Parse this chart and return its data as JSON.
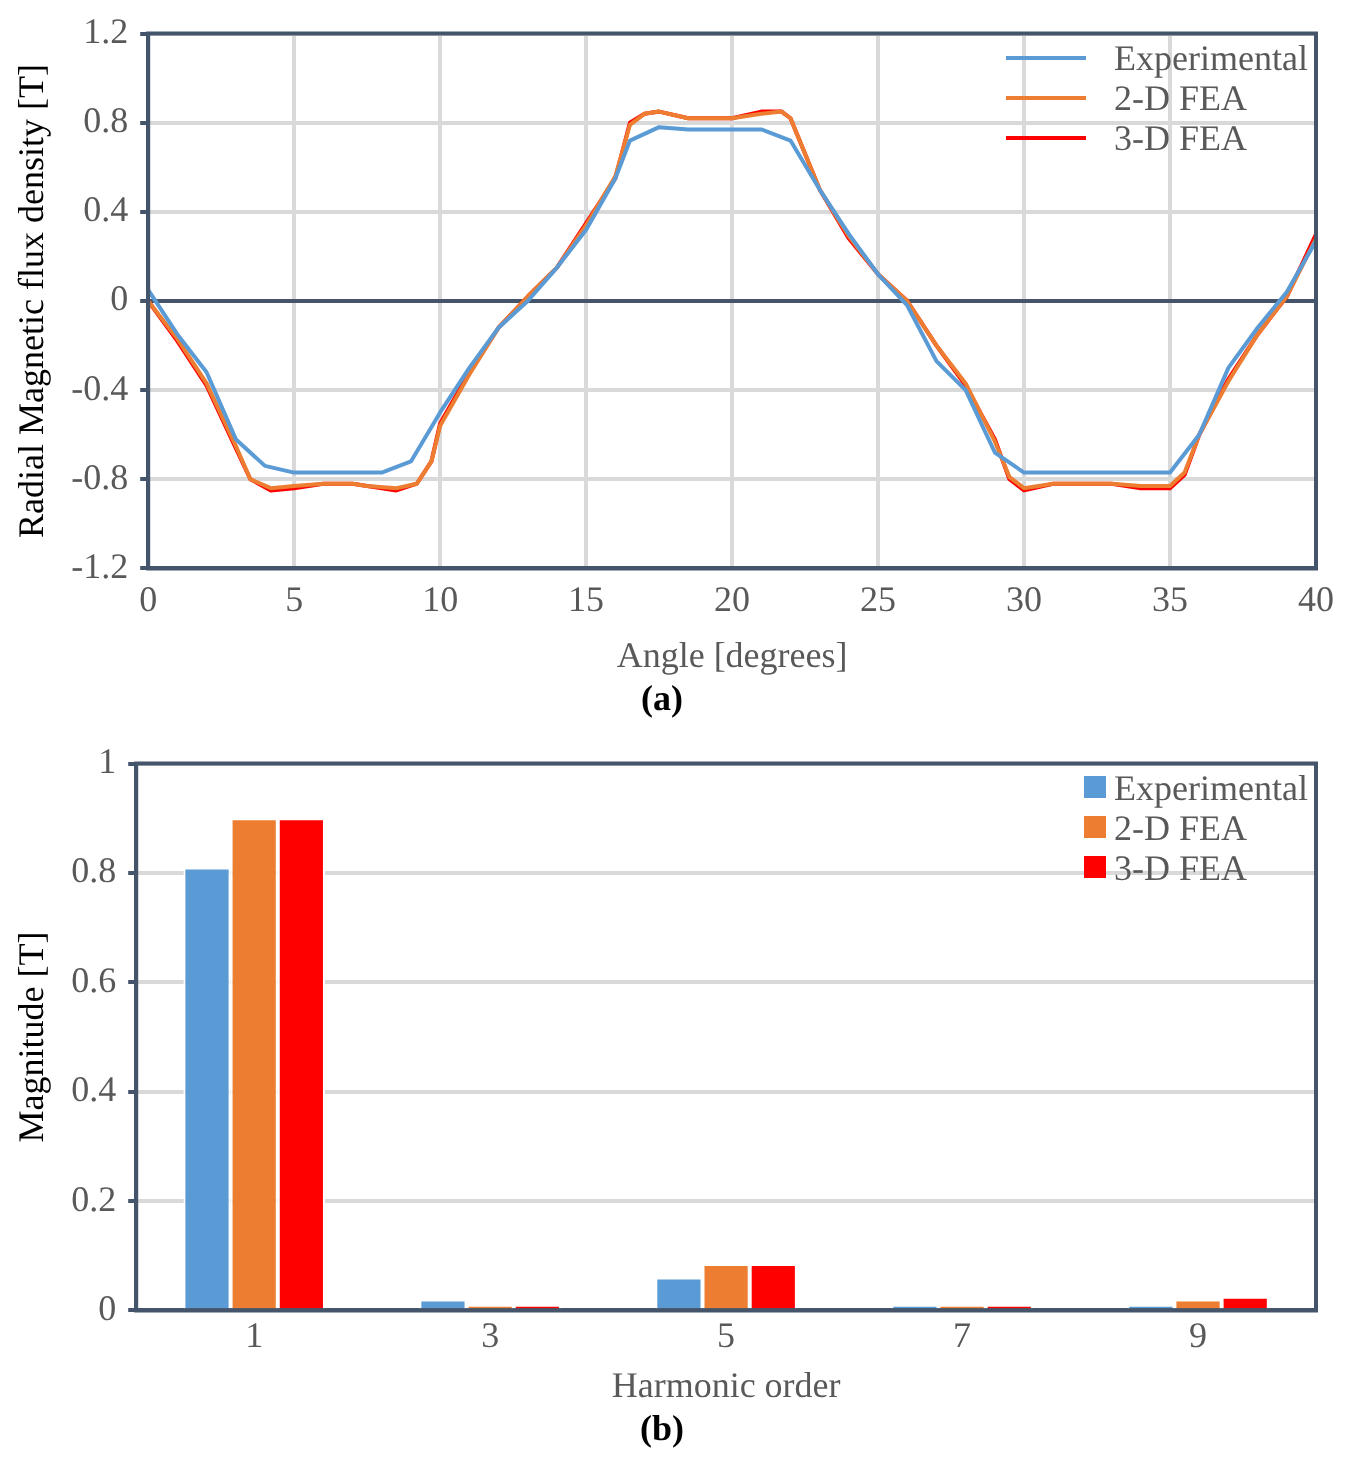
{
  "chart_data": [
    {
      "type": "line",
      "title": "(a)",
      "xlabel": "Angle [degrees]",
      "ylabel": "Radial Magnetic flux density [T]",
      "xlim": [
        0,
        40
      ],
      "xticks": [
        0,
        5,
        10,
        15,
        20,
        25,
        30,
        35,
        40
      ],
      "ylim": [
        -1.2,
        1.2
      ],
      "yticks": [
        -1.2,
        -0.8,
        -0.4,
        0,
        0.4,
        0.8,
        1.2
      ],
      "grid": true,
      "legend": "top right",
      "marker": "none",
      "line_style": "solid",
      "series": [
        {
          "name": "Experimental",
          "color": "#5b9bd5",
          "x": [
            0,
            1,
            2,
            3,
            4,
            5,
            8,
            9,
            10,
            11,
            12,
            13,
            14,
            15,
            16,
            16.5,
            17.5,
            18.5,
            21,
            22,
            23,
            24,
            25,
            26,
            27,
            28,
            29,
            30,
            35,
            36,
            37,
            38,
            39,
            40
          ],
          "values": [
            0.05,
            -0.15,
            -0.32,
            -0.62,
            -0.74,
            -0.77,
            -0.77,
            -0.72,
            -0.5,
            -0.3,
            -0.12,
            0.0,
            0.15,
            0.32,
            0.55,
            0.72,
            0.78,
            0.77,
            0.77,
            0.72,
            0.5,
            0.3,
            0.12,
            -0.02,
            -0.27,
            -0.4,
            -0.68,
            -0.77,
            -0.77,
            -0.6,
            -0.3,
            -0.12,
            0.04,
            0.27
          ]
        },
        {
          "name": "2-D FEA",
          "color": "#ed7d31",
          "x": [
            0,
            1,
            2,
            3,
            3.5,
            4.2,
            5,
            6,
            7,
            7.5,
            8.5,
            9.2,
            9.7,
            10,
            11,
            12,
            13,
            14,
            15,
            16,
            16.5,
            17,
            17.5,
            18.5,
            20,
            21,
            21.7,
            22,
            23,
            24,
            25,
            26,
            27,
            28,
            29,
            29.5,
            30,
            31,
            33,
            34,
            35,
            35.5,
            36,
            37,
            38,
            39,
            40
          ],
          "values": [
            0,
            -0.17,
            -0.37,
            -0.65,
            -0.8,
            -0.84,
            -0.83,
            -0.82,
            -0.82,
            -0.83,
            -0.84,
            -0.82,
            -0.72,
            -0.56,
            -0.33,
            -0.12,
            0.02,
            0.15,
            0.34,
            0.56,
            0.79,
            0.84,
            0.85,
            0.82,
            0.82,
            0.84,
            0.85,
            0.82,
            0.5,
            0.29,
            0.12,
            0,
            -0.2,
            -0.37,
            -0.63,
            -0.79,
            -0.84,
            -0.82,
            -0.82,
            -0.83,
            -0.83,
            -0.77,
            -0.6,
            -0.36,
            -0.15,
            0.02,
            0.28
          ]
        },
        {
          "name": "3-D FEA",
          "color": "#ff0000",
          "x": [
            0,
            1,
            2,
            3,
            3.5,
            4.2,
            5,
            6,
            7,
            7.5,
            8.5,
            9.2,
            9.7,
            10,
            11,
            12,
            13,
            14,
            15,
            16,
            16.5,
            17,
            17.5,
            18.5,
            20,
            21,
            21.7,
            22,
            23,
            24,
            25,
            26,
            27,
            28,
            29,
            29.5,
            30,
            31,
            33,
            34,
            35,
            35.5,
            36,
            37,
            38,
            39,
            40
          ],
          "values": [
            0,
            -0.18,
            -0.38,
            -0.66,
            -0.8,
            -0.85,
            -0.84,
            -0.82,
            -0.82,
            -0.83,
            -0.85,
            -0.82,
            -0.72,
            -0.55,
            -0.32,
            -0.12,
            0.02,
            0.15,
            0.35,
            0.55,
            0.8,
            0.84,
            0.85,
            0.82,
            0.82,
            0.85,
            0.85,
            0.82,
            0.5,
            0.28,
            0.12,
            0,
            -0.2,
            -0.38,
            -0.62,
            -0.8,
            -0.85,
            -0.82,
            -0.82,
            -0.84,
            -0.84,
            -0.78,
            -0.6,
            -0.35,
            -0.15,
            0.02,
            0.3
          ]
        }
      ]
    },
    {
      "type": "bar",
      "title": "(b)",
      "xlabel": "Harmonic order",
      "ylabel": "Magnitude [T]",
      "categories": [
        "1",
        "3",
        "5",
        "7",
        "9"
      ],
      "ylim": [
        0,
        1
      ],
      "yticks": [
        0,
        0.2,
        0.4,
        0.6,
        0.8,
        1
      ],
      "grid": "y",
      "legend": "top right",
      "series": [
        {
          "name": "Experimental",
          "color": "#5b9bd5",
          "values": [
            0.81,
            0.02,
            0.06,
            0.01,
            0.01
          ]
        },
        {
          "name": "2-D FEA",
          "color": "#ed7d31",
          "values": [
            0.9,
            0.01,
            0.085,
            0.01,
            0.02
          ]
        },
        {
          "name": "3-D FEA",
          "color": "#ff0000",
          "values": [
            0.9,
            0.01,
            0.085,
            0.01,
            0.025
          ]
        }
      ]
    }
  ]
}
